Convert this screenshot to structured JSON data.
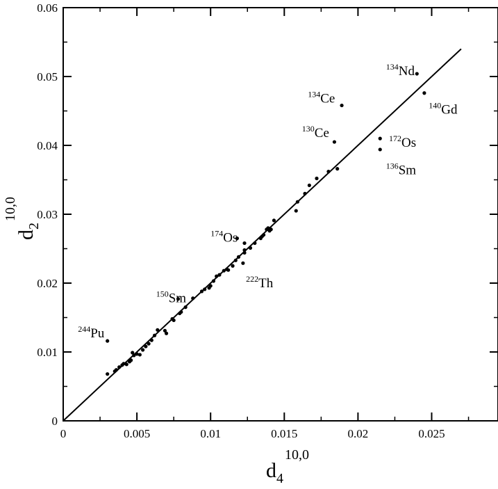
{
  "chart_data": {
    "type": "scatter",
    "xlim": [
      0,
      0.0295
    ],
    "ylim": [
      0,
      0.06
    ],
    "xticks": [
      0,
      0.005,
      0.01,
      0.015,
      0.02,
      0.025
    ],
    "xtick_labels": [
      "0",
      "0.005",
      "0.01",
      "0.015",
      "0.02",
      "0.025"
    ],
    "yticks": [
      0,
      0.01,
      0.02,
      0.03,
      0.04,
      0.05,
      0.06
    ],
    "ytick_labels": [
      "0",
      "0.01",
      "0.02",
      "0.03",
      "0.04",
      "0.05",
      "0.06"
    ],
    "xlabel": {
      "base": "d",
      "sub": "4",
      "sup": "10,0"
    },
    "ylabel": {
      "base": "d",
      "sub": "2",
      "sup": "10,0"
    },
    "grid": false,
    "fit_line": {
      "x": [
        0,
        0.027
      ],
      "y": [
        0,
        0.054
      ]
    },
    "points": [
      [
        0.003,
        0.0116
      ],
      [
        0.003,
        0.0068
      ],
      [
        0.0035,
        0.0072
      ],
      [
        0.0036,
        0.0074
      ],
      [
        0.0038,
        0.0078
      ],
      [
        0.004,
        0.0081
      ],
      [
        0.0041,
        0.0083
      ],
      [
        0.0043,
        0.0082
      ],
      [
        0.0045,
        0.0086
      ],
      [
        0.0046,
        0.0088
      ],
      [
        0.0047,
        0.0099
      ],
      [
        0.0048,
        0.0095
      ],
      [
        0.005,
        0.0097
      ],
      [
        0.0052,
        0.0096
      ],
      [
        0.0054,
        0.0103
      ],
      [
        0.0056,
        0.0108
      ],
      [
        0.0058,
        0.0112
      ],
      [
        0.006,
        0.0117
      ],
      [
        0.0062,
        0.0124
      ],
      [
        0.0064,
        0.0132
      ],
      [
        0.0069,
        0.0131
      ],
      [
        0.007,
        0.0127
      ],
      [
        0.0074,
        0.0148
      ],
      [
        0.0075,
        0.0146
      ],
      [
        0.0078,
        0.0177
      ],
      [
        0.0079,
        0.0156
      ],
      [
        0.008,
        0.0158
      ],
      [
        0.0083,
        0.0165
      ],
      [
        0.0088,
        0.0178
      ],
      [
        0.0094,
        0.0188
      ],
      [
        0.0096,
        0.0191
      ],
      [
        0.0099,
        0.0193
      ],
      [
        0.01,
        0.0196
      ],
      [
        0.0102,
        0.0203
      ],
      [
        0.0104,
        0.021
      ],
      [
        0.0106,
        0.0212
      ],
      [
        0.0109,
        0.0218
      ],
      [
        0.0111,
        0.022
      ],
      [
        0.0112,
        0.0219
      ],
      [
        0.0115,
        0.0225
      ],
      [
        0.0117,
        0.0233
      ],
      [
        0.0118,
        0.0265
      ],
      [
        0.0119,
        0.0238
      ],
      [
        0.0122,
        0.0229
      ],
      [
        0.0123,
        0.0244
      ],
      [
        0.0123,
        0.0248
      ],
      [
        0.0123,
        0.0258
      ],
      [
        0.0127,
        0.0251
      ],
      [
        0.013,
        0.0258
      ],
      [
        0.0134,
        0.0265
      ],
      [
        0.0135,
        0.0268
      ],
      [
        0.0136,
        0.027
      ],
      [
        0.0138,
        0.0278
      ],
      [
        0.0139,
        0.028
      ],
      [
        0.014,
        0.0276
      ],
      [
        0.0141,
        0.0278
      ],
      [
        0.0143,
        0.0291
      ],
      [
        0.0158,
        0.0305
      ],
      [
        0.0159,
        0.0318
      ],
      [
        0.0164,
        0.033
      ],
      [
        0.0167,
        0.0342
      ],
      [
        0.0172,
        0.0352
      ],
      [
        0.018,
        0.0362
      ],
      [
        0.0184,
        0.0405
      ],
      [
        0.0186,
        0.0366
      ],
      [
        0.0189,
        0.0458
      ],
      [
        0.0215,
        0.041
      ],
      [
        0.0215,
        0.0394
      ],
      [
        0.024,
        0.0504
      ],
      [
        0.0245,
        0.0476
      ]
    ],
    "annotations": [
      {
        "sup": "244",
        "name": "Pu",
        "x": 0.001,
        "y": 0.0121
      },
      {
        "sup": "150",
        "name": "Sm",
        "x": 0.0063,
        "y": 0.0172
      },
      {
        "sup": "174",
        "name": "Os",
        "x": 0.01,
        "y": 0.026
      },
      {
        "sup": "222",
        "name": "Th",
        "x": 0.0124,
        "y": 0.0194
      },
      {
        "sup": "134",
        "name": "Ce",
        "x": 0.0166,
        "y": 0.0462
      },
      {
        "sup": "130",
        "name": "Ce",
        "x": 0.0162,
        "y": 0.0412
      },
      {
        "sup": "134",
        "name": "Nd",
        "x": 0.0219,
        "y": 0.0502
      },
      {
        "sup": "140",
        "name": "Gd",
        "x": 0.0248,
        "y": 0.0446
      },
      {
        "sup": "172",
        "name": "Os",
        "x": 0.0221,
        "y": 0.0398
      },
      {
        "sup": "136",
        "name": "Sm",
        "x": 0.0219,
        "y": 0.0358
      }
    ]
  }
}
